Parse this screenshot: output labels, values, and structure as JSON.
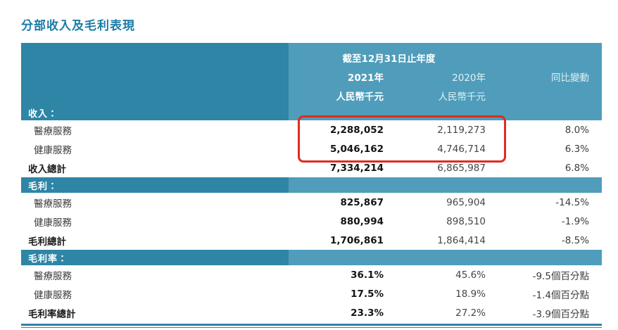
{
  "title": "分部收入及毛利表現",
  "header": {
    "period": "截至12月31日止年度",
    "col2021": {
      "year": "2021年",
      "unit": "人民幣千元"
    },
    "col2020": {
      "year": "2020年",
      "unit": "人民幣千元"
    },
    "change_label": "同比變動"
  },
  "sections": [
    {
      "header": "收入：",
      "rows": [
        {
          "label": "醫療服務",
          "y2021": "2,288,052",
          "y2020": "2,119,273",
          "change": "8.0%"
        },
        {
          "label": "健康服務",
          "y2021": "5,046,162",
          "y2020": "4,746,714",
          "change": "6.3%"
        }
      ],
      "total": {
        "label": "收入總計",
        "y2021": "7,334,214",
        "y2020": "6,865,987",
        "change": "6.8%"
      }
    },
    {
      "header": "毛利：",
      "rows": [
        {
          "label": "醫療服務",
          "y2021": "825,867",
          "y2020": "965,904",
          "change": "-14.5%"
        },
        {
          "label": "健康服務",
          "y2021": "880,994",
          "y2020": "898,510",
          "change": "-1.9%"
        }
      ],
      "total": {
        "label": "毛利總計",
        "y2021": "1,706,861",
        "y2020": "1,864,414",
        "change": "-8.5%"
      }
    },
    {
      "header": "毛利率：",
      "rows": [
        {
          "label": "醫療服務",
          "y2021": "36.1%",
          "y2020": "45.6%",
          "change": "-9.5個百分點"
        },
        {
          "label": "健康服務",
          "y2021": "17.5%",
          "y2020": "18.9%",
          "change": "-1.4個百分點"
        }
      ],
      "total": {
        "label": "毛利率總計",
        "y2021": "23.3%",
        "y2020": "27.2%",
        "change": "-3.9個百分點"
      }
    }
  ],
  "colors": {
    "accent_dark": "#2e85a6",
    "accent_light": "#4f9dbb",
    "highlight_red": "#e02b1f",
    "title": "#1c7ca6"
  }
}
